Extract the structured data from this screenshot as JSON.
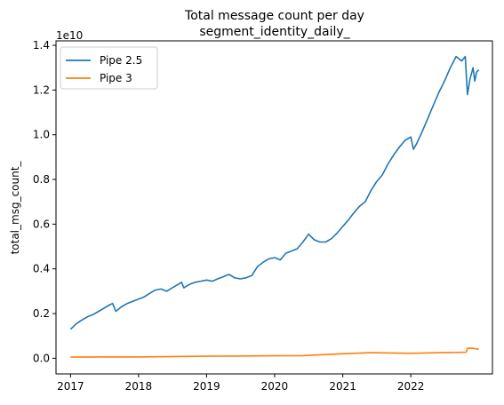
{
  "chart_data": {
    "type": "line",
    "title": "Total message count per day",
    "subtitle": "segment_identity_daily_",
    "xlabel": "",
    "ylabel": "total_msg_count_",
    "y_offset_label": "1e10",
    "y_scale_factor": 10000000000,
    "xlim": [
      "2016-10-15",
      "2023-03-15"
    ],
    "ylim": [
      -0.07,
      1.42
    ],
    "x_ticks": [
      {
        "date": "2017-01-01",
        "label": "2017"
      },
      {
        "date": "2018-01-01",
        "label": "2018"
      },
      {
        "date": "2019-01-01",
        "label": "2019"
      },
      {
        "date": "2020-01-01",
        "label": "2020"
      },
      {
        "date": "2021-01-01",
        "label": "2021"
      },
      {
        "date": "2022-01-01",
        "label": "2022"
      }
    ],
    "y_ticks": [
      {
        "value": 0.0,
        "label": "0.0"
      },
      {
        "value": 0.2,
        "label": "0.2"
      },
      {
        "value": 0.4,
        "label": "0.4"
      },
      {
        "value": 0.6,
        "label": "0.6"
      },
      {
        "value": 0.8,
        "label": "0.8"
      },
      {
        "value": 1.0,
        "label": "1.0"
      },
      {
        "value": 1.2,
        "label": "1.2"
      },
      {
        "value": 1.4,
        "label": "1.4"
      }
    ],
    "grid": false,
    "legend_position": "top-left",
    "series": [
      {
        "name": "Pipe 2.5",
        "color": "#1f77b4",
        "points": [
          [
            "2017-01-01",
            0.13
          ],
          [
            "2017-02-01",
            0.155
          ],
          [
            "2017-03-01",
            0.17
          ],
          [
            "2017-04-01",
            0.185
          ],
          [
            "2017-05-01",
            0.195
          ],
          [
            "2017-06-01",
            0.21
          ],
          [
            "2017-07-01",
            0.225
          ],
          [
            "2017-08-01",
            0.24
          ],
          [
            "2017-08-15",
            0.245
          ],
          [
            "2017-09-01",
            0.21
          ],
          [
            "2017-10-01",
            0.23
          ],
          [
            "2017-11-01",
            0.245
          ],
          [
            "2017-12-01",
            0.255
          ],
          [
            "2018-01-01",
            0.265
          ],
          [
            "2018-02-01",
            0.275
          ],
          [
            "2018-03-01",
            0.29
          ],
          [
            "2018-04-01",
            0.305
          ],
          [
            "2018-05-01",
            0.31
          ],
          [
            "2018-06-01",
            0.3
          ],
          [
            "2018-07-01",
            0.315
          ],
          [
            "2018-08-01",
            0.33
          ],
          [
            "2018-08-20",
            0.34
          ],
          [
            "2018-09-01",
            0.315
          ],
          [
            "2018-10-01",
            0.33
          ],
          [
            "2018-11-01",
            0.34
          ],
          [
            "2018-12-01",
            0.345
          ],
          [
            "2019-01-01",
            0.35
          ],
          [
            "2019-02-01",
            0.345
          ],
          [
            "2019-03-01",
            0.355
          ],
          [
            "2019-04-01",
            0.365
          ],
          [
            "2019-05-01",
            0.375
          ],
          [
            "2019-06-01",
            0.36
          ],
          [
            "2019-07-01",
            0.355
          ],
          [
            "2019-08-01",
            0.36
          ],
          [
            "2019-09-01",
            0.37
          ],
          [
            "2019-10-01",
            0.41
          ],
          [
            "2019-11-01",
            0.43
          ],
          [
            "2019-12-01",
            0.445
          ],
          [
            "2020-01-01",
            0.45
          ],
          [
            "2020-02-01",
            0.44
          ],
          [
            "2020-03-01",
            0.47
          ],
          [
            "2020-04-01",
            0.48
          ],
          [
            "2020-05-01",
            0.49
          ],
          [
            "2020-06-01",
            0.52
          ],
          [
            "2020-07-01",
            0.555
          ],
          [
            "2020-08-01",
            0.53
          ],
          [
            "2020-09-01",
            0.52
          ],
          [
            "2020-10-01",
            0.52
          ],
          [
            "2020-11-01",
            0.535
          ],
          [
            "2020-12-01",
            0.56
          ],
          [
            "2021-01-01",
            0.59
          ],
          [
            "2021-02-01",
            0.62
          ],
          [
            "2021-03-01",
            0.65
          ],
          [
            "2021-04-01",
            0.68
          ],
          [
            "2021-05-01",
            0.7
          ],
          [
            "2021-06-01",
            0.75
          ],
          [
            "2021-07-01",
            0.79
          ],
          [
            "2021-08-01",
            0.82
          ],
          [
            "2021-09-01",
            0.87
          ],
          [
            "2021-10-01",
            0.91
          ],
          [
            "2021-11-01",
            0.945
          ],
          [
            "2021-12-01",
            0.975
          ],
          [
            "2022-01-01",
            0.99
          ],
          [
            "2022-01-15",
            0.935
          ],
          [
            "2022-02-01",
            0.96
          ],
          [
            "2022-03-01",
            1.01
          ],
          [
            "2022-04-01",
            1.07
          ],
          [
            "2022-05-01",
            1.13
          ],
          [
            "2022-06-01",
            1.19
          ],
          [
            "2022-07-01",
            1.24
          ],
          [
            "2022-08-01",
            1.3
          ],
          [
            "2022-09-01",
            1.35
          ],
          [
            "2022-10-01",
            1.33
          ],
          [
            "2022-10-20",
            1.35
          ],
          [
            "2022-11-01",
            1.18
          ],
          [
            "2022-11-15",
            1.25
          ],
          [
            "2022-12-01",
            1.3
          ],
          [
            "2022-12-10",
            1.24
          ],
          [
            "2022-12-20",
            1.28
          ],
          [
            "2023-01-01",
            1.29
          ]
        ]
      },
      {
        "name": "Pipe 3",
        "color": "#ff7f0e",
        "points": [
          [
            "2017-01-01",
            0.005
          ],
          [
            "2017-06-01",
            0.006
          ],
          [
            "2018-01-01",
            0.006
          ],
          [
            "2018-06-01",
            0.007
          ],
          [
            "2019-01-01",
            0.009
          ],
          [
            "2019-06-01",
            0.01
          ],
          [
            "2020-01-01",
            0.011
          ],
          [
            "2020-06-01",
            0.012
          ],
          [
            "2021-01-01",
            0.02
          ],
          [
            "2021-06-01",
            0.025
          ],
          [
            "2022-01-01",
            0.022
          ],
          [
            "2022-06-01",
            0.025
          ],
          [
            "2022-10-25",
            0.027
          ],
          [
            "2022-11-01",
            0.045
          ],
          [
            "2022-12-01",
            0.045
          ],
          [
            "2023-01-01",
            0.04
          ]
        ]
      }
    ]
  }
}
